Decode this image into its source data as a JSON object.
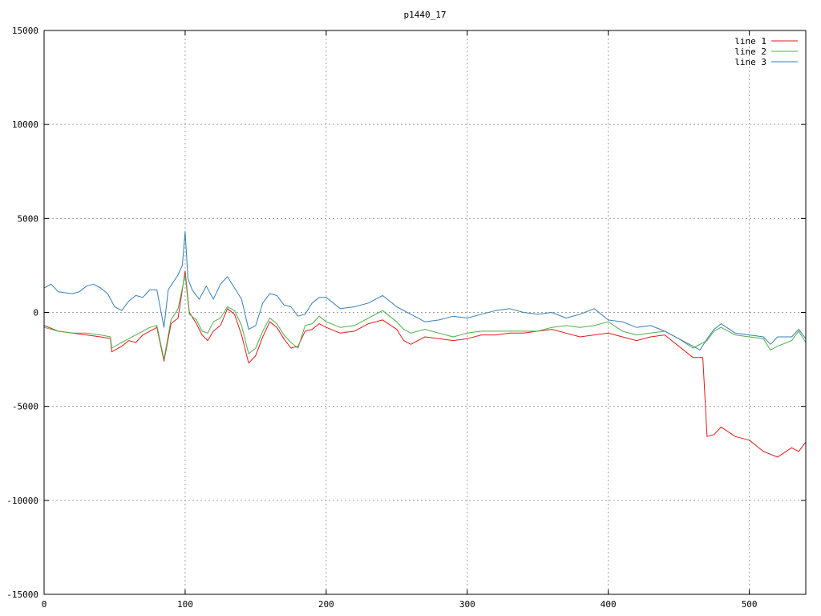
{
  "chart_data": {
    "type": "line",
    "title": "p1440_17",
    "xlabel": "",
    "ylabel": "",
    "xlim": [
      0,
      540
    ],
    "ylim": [
      -15000,
      15000
    ],
    "xticks": [
      0,
      100,
      200,
      300,
      400,
      500
    ],
    "yticks": [
      -15000,
      -10000,
      -5000,
      0,
      5000,
      10000,
      15000
    ],
    "grid": true,
    "legend_position": "top-right",
    "series": [
      {
        "name": "line 1",
        "color": "#e41a1c",
        "points": [
          [
            0,
            -700
          ],
          [
            10,
            -1000
          ],
          [
            20,
            -1100
          ],
          [
            30,
            -1200
          ],
          [
            40,
            -1300
          ],
          [
            47,
            -1400
          ],
          [
            48,
            -2100
          ],
          [
            55,
            -1800
          ],
          [
            60,
            -1500
          ],
          [
            65,
            -1600
          ],
          [
            70,
            -1200
          ],
          [
            75,
            -1000
          ],
          [
            80,
            -800
          ],
          [
            85,
            -2600
          ],
          [
            90,
            -600
          ],
          [
            95,
            -300
          ],
          [
            100,
            2200
          ],
          [
            103,
            0
          ],
          [
            108,
            -600
          ],
          [
            112,
            -1200
          ],
          [
            116,
            -1500
          ],
          [
            120,
            -1000
          ],
          [
            125,
            -700
          ],
          [
            130,
            200
          ],
          [
            135,
            -100
          ],
          [
            140,
            -1200
          ],
          [
            145,
            -2700
          ],
          [
            150,
            -2300
          ],
          [
            155,
            -1300
          ],
          [
            160,
            -500
          ],
          [
            165,
            -800
          ],
          [
            170,
            -1400
          ],
          [
            175,
            -1900
          ],
          [
            180,
            -1800
          ],
          [
            185,
            -1000
          ],
          [
            190,
            -900
          ],
          [
            195,
            -600
          ],
          [
            200,
            -800
          ],
          [
            210,
            -1100
          ],
          [
            220,
            -1000
          ],
          [
            230,
            -600
          ],
          [
            240,
            -400
          ],
          [
            250,
            -900
          ],
          [
            255,
            -1500
          ],
          [
            260,
            -1700
          ],
          [
            270,
            -1300
          ],
          [
            280,
            -1400
          ],
          [
            290,
            -1500
          ],
          [
            300,
            -1400
          ],
          [
            310,
            -1200
          ],
          [
            320,
            -1200
          ],
          [
            330,
            -1100
          ],
          [
            340,
            -1100
          ],
          [
            350,
            -1000
          ],
          [
            360,
            -900
          ],
          [
            370,
            -1100
          ],
          [
            380,
            -1300
          ],
          [
            390,
            -1200
          ],
          [
            400,
            -1100
          ],
          [
            410,
            -1300
          ],
          [
            420,
            -1500
          ],
          [
            430,
            -1300
          ],
          [
            440,
            -1200
          ],
          [
            450,
            -1800
          ],
          [
            460,
            -2400
          ],
          [
            467,
            -2400
          ],
          [
            470,
            -6600
          ],
          [
            475,
            -6500
          ],
          [
            480,
            -6100
          ],
          [
            490,
            -6600
          ],
          [
            500,
            -6800
          ],
          [
            510,
            -7400
          ],
          [
            520,
            -7700
          ],
          [
            530,
            -7200
          ],
          [
            535,
            -7400
          ],
          [
            540,
            -6900
          ]
        ]
      },
      {
        "name": "line 2",
        "color": "#4daf4a",
        "points": [
          [
            0,
            -800
          ],
          [
            10,
            -1000
          ],
          [
            20,
            -1100
          ],
          [
            30,
            -1100
          ],
          [
            40,
            -1200
          ],
          [
            47,
            -1300
          ],
          [
            48,
            -1900
          ],
          [
            55,
            -1600
          ],
          [
            60,
            -1400
          ],
          [
            65,
            -1200
          ],
          [
            70,
            -1000
          ],
          [
            75,
            -800
          ],
          [
            80,
            -700
          ],
          [
            85,
            -2500
          ],
          [
            90,
            -400
          ],
          [
            95,
            200
          ],
          [
            100,
            2000
          ],
          [
            103,
            -100
          ],
          [
            108,
            -400
          ],
          [
            112,
            -1000
          ],
          [
            116,
            -1100
          ],
          [
            120,
            -500
          ],
          [
            125,
            -300
          ],
          [
            130,
            300
          ],
          [
            135,
            100
          ],
          [
            140,
            -700
          ],
          [
            145,
            -2200
          ],
          [
            150,
            -1900
          ],
          [
            155,
            -1000
          ],
          [
            160,
            -300
          ],
          [
            165,
            -600
          ],
          [
            170,
            -1200
          ],
          [
            175,
            -1600
          ],
          [
            180,
            -1900
          ],
          [
            185,
            -700
          ],
          [
            190,
            -600
          ],
          [
            195,
            -200
          ],
          [
            200,
            -500
          ],
          [
            210,
            -800
          ],
          [
            220,
            -700
          ],
          [
            230,
            -300
          ],
          [
            240,
            100
          ],
          [
            250,
            -500
          ],
          [
            255,
            -900
          ],
          [
            260,
            -1100
          ],
          [
            270,
            -900
          ],
          [
            280,
            -1100
          ],
          [
            290,
            -1300
          ],
          [
            300,
            -1100
          ],
          [
            310,
            -1000
          ],
          [
            320,
            -1000
          ],
          [
            330,
            -1000
          ],
          [
            340,
            -1000
          ],
          [
            350,
            -1000
          ],
          [
            360,
            -800
          ],
          [
            370,
            -700
          ],
          [
            380,
            -800
          ],
          [
            390,
            -700
          ],
          [
            400,
            -500
          ],
          [
            410,
            -1000
          ],
          [
            420,
            -1200
          ],
          [
            430,
            -1100
          ],
          [
            440,
            -1000
          ],
          [
            450,
            -1400
          ],
          [
            460,
            -1900
          ],
          [
            470,
            -1500
          ],
          [
            475,
            -1000
          ],
          [
            480,
            -800
          ],
          [
            490,
            -1200
          ],
          [
            500,
            -1300
          ],
          [
            510,
            -1400
          ],
          [
            515,
            -2000
          ],
          [
            520,
            -1800
          ],
          [
            530,
            -1500
          ],
          [
            535,
            -1000
          ],
          [
            540,
            -1600
          ]
        ]
      },
      {
        "name": "line 3",
        "color": "#377eb8",
        "points": [
          [
            0,
            1300
          ],
          [
            5,
            1500
          ],
          [
            10,
            1100
          ],
          [
            20,
            1000
          ],
          [
            25,
            1100
          ],
          [
            30,
            1400
          ],
          [
            35,
            1500
          ],
          [
            40,
            1300
          ],
          [
            45,
            1000
          ],
          [
            50,
            300
          ],
          [
            55,
            100
          ],
          [
            60,
            600
          ],
          [
            65,
            900
          ],
          [
            70,
            800
          ],
          [
            75,
            1200
          ],
          [
            80,
            1200
          ],
          [
            85,
            -800
          ],
          [
            88,
            1200
          ],
          [
            95,
            2000
          ],
          [
            98,
            2500
          ],
          [
            100,
            4300
          ],
          [
            102,
            1800
          ],
          [
            105,
            1200
          ],
          [
            110,
            700
          ],
          [
            115,
            1400
          ],
          [
            120,
            700
          ],
          [
            125,
            1500
          ],
          [
            130,
            1900
          ],
          [
            135,
            1300
          ],
          [
            140,
            700
          ],
          [
            145,
            -900
          ],
          [
            150,
            -700
          ],
          [
            155,
            500
          ],
          [
            160,
            1000
          ],
          [
            165,
            900
          ],
          [
            170,
            400
          ],
          [
            175,
            300
          ],
          [
            180,
            -200
          ],
          [
            185,
            -100
          ],
          [
            190,
            500
          ],
          [
            195,
            800
          ],
          [
            200,
            800
          ],
          [
            210,
            200
          ],
          [
            220,
            300
          ],
          [
            230,
            500
          ],
          [
            240,
            900
          ],
          [
            250,
            300
          ],
          [
            260,
            -100
          ],
          [
            270,
            -500
          ],
          [
            280,
            -400
          ],
          [
            290,
            -200
          ],
          [
            300,
            -300
          ],
          [
            310,
            -100
          ],
          [
            320,
            100
          ],
          [
            330,
            200
          ],
          [
            340,
            0
          ],
          [
            350,
            -100
          ],
          [
            360,
            0
          ],
          [
            370,
            -300
          ],
          [
            380,
            -100
          ],
          [
            390,
            200
          ],
          [
            400,
            -400
          ],
          [
            410,
            -500
          ],
          [
            420,
            -800
          ],
          [
            430,
            -700
          ],
          [
            440,
            -1000
          ],
          [
            450,
            -1400
          ],
          [
            460,
            -1800
          ],
          [
            465,
            -2000
          ],
          [
            470,
            -1400
          ],
          [
            475,
            -900
          ],
          [
            480,
            -600
          ],
          [
            490,
            -1100
          ],
          [
            500,
            -1200
          ],
          [
            510,
            -1300
          ],
          [
            515,
            -1700
          ],
          [
            520,
            -1300
          ],
          [
            530,
            -1300
          ],
          [
            535,
            -900
          ],
          [
            540,
            -1400
          ]
        ]
      }
    ]
  }
}
